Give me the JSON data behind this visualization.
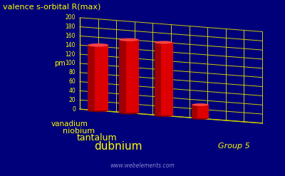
{
  "title": "valence s-orbital R(max)",
  "ylabel": "pm",
  "xlabel": "Group 5",
  "elements": [
    "vanadium",
    "niobium",
    "tantalum",
    "dubnium"
  ],
  "values": [
    143,
    160,
    160,
    30
  ],
  "background_color": "#00007a",
  "text_color": "#ffff00",
  "grid_color": "#cccc00",
  "bar_red": "#dd0000",
  "bar_dark_red": "#880000",
  "bar_top_red": "#ff4444",
  "yticks": [
    0,
    20,
    40,
    60,
    80,
    100,
    120,
    140,
    160,
    180,
    200
  ],
  "ylim": [
    0,
    200
  ],
  "watermark": "www.webelements.com",
  "watermark_color": "#8888cc"
}
